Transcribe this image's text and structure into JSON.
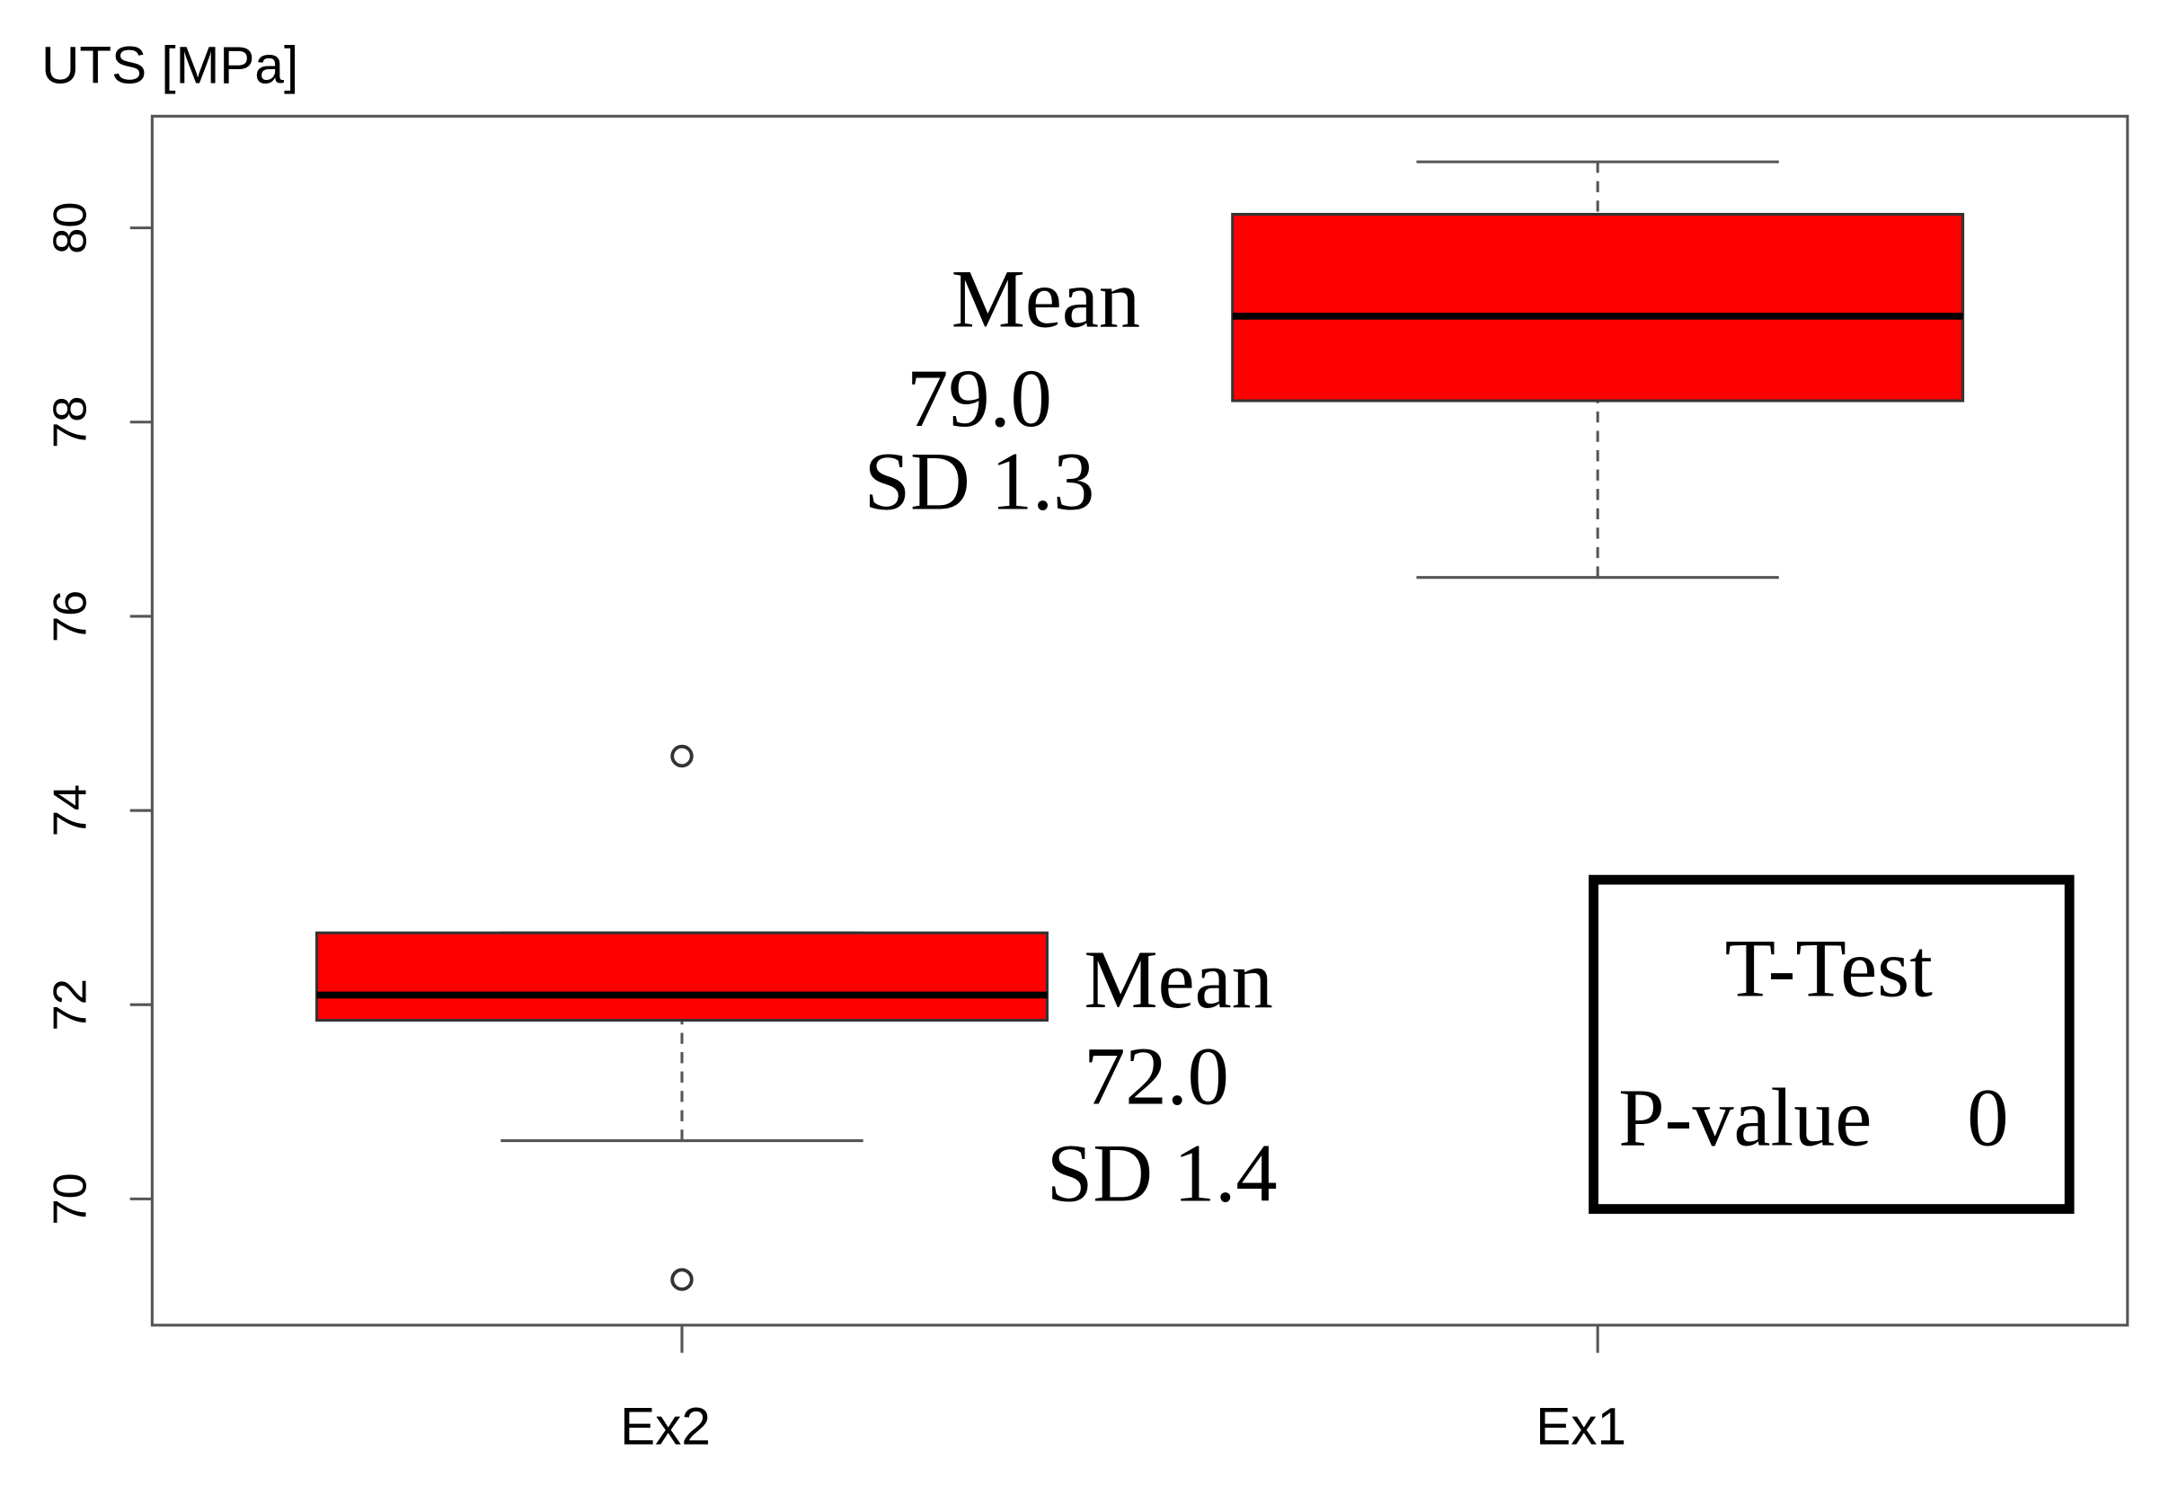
{
  "chart_data": {
    "type": "box",
    "ylabel": "UTS [MPa]",
    "categories": [
      "Ex2",
      "Ex1"
    ],
    "whislo": [
      70.6,
      76.4
    ],
    "q1": [
      71.84,
      78.22
    ],
    "med": [
      72.1,
      79.09
    ],
    "q3": [
      72.74,
      80.14
    ],
    "whishi": [
      72.74,
      80.68
    ],
    "fliers": [
      [
        74.56,
        69.17
      ],
      []
    ],
    "color": "#ff0000",
    "ylim": [
      68.7,
      81.15
    ],
    "yticks": [
      70,
      72,
      74,
      76,
      78,
      80
    ],
    "annotations": [
      [
        "Mean",
        "72.0",
        "SD 1.4"
      ],
      [
        "Mean",
        "79.0",
        "SD 1.3"
      ]
    ],
    "test_box": {
      "title": "T-Test",
      "label": "P-value",
      "value": 0
    }
  }
}
